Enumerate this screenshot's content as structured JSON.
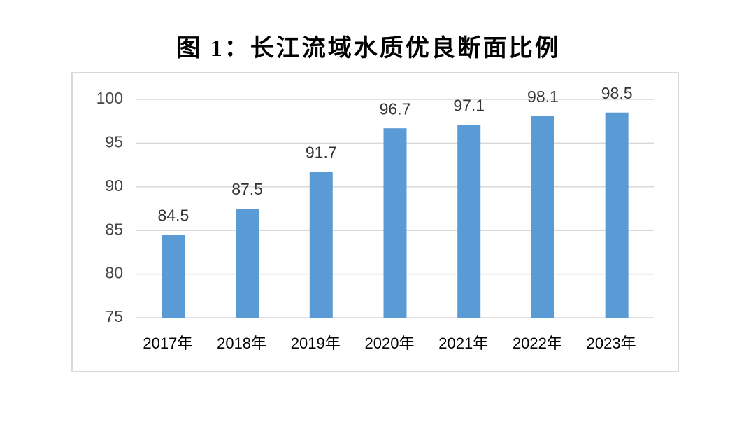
{
  "chart_data": {
    "type": "bar",
    "title": "图 1：长江流域水质优良断面比例",
    "categories": [
      "2017年",
      "2018年",
      "2019年",
      "2020年",
      "2021年",
      "2022年",
      "2023年"
    ],
    "values": [
      84.5,
      87.5,
      91.7,
      96.7,
      97.1,
      98.1,
      98.5
    ],
    "color": "#5b9bd5",
    "ylim": [
      75,
      100
    ],
    "yticks": [
      75,
      80,
      85,
      90,
      95,
      100
    ],
    "grid": true
  }
}
